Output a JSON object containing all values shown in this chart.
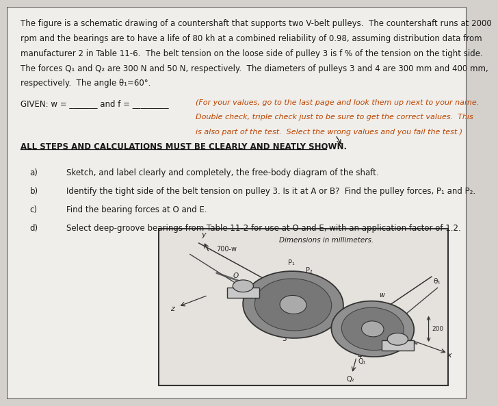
{
  "bg_color": "#d4d0cc",
  "paper_color": "#f0eeea",
  "border_color": "#555555",
  "text_color": "#1a1a1a",
  "title_text_lines": [
    "The figure is a schematic drawing of a countershaft that supports two V-belt pulleys.  The countershaft runs at 2000",
    "rpm and the bearings are to have a life of 80 kh at a combined reliability of 0.98, assuming distribution data from",
    "manufacturer 2 in Table 11-6.  The belt tension on the loose side of pulley 3 is f % of the tension on the tight side.",
    "The forces Q₁ and Q₂ are 300 N and 50 N, respectively.  The diameters of pulleys 3 and 4 are 300 mm and 400 mm,",
    "respectively.  The angle θ₁=60°."
  ],
  "given_text": "GIVEN: w = _______ and f = _________",
  "note_text_lines": [
    "(For your values, go to the last page and look them up next to your name.",
    "Double check, triple check just to be sure to get the correct values.  This",
    "is also part of the test.  Select the wrong values and you fail the test.)"
  ],
  "underline_text": "ALL STEPS AND CALCULATIONS MUST BE CLEARLY AND NEATLY SHOWN.",
  "items": [
    [
      "a)",
      "Sketch, and label clearly and completely, the free-body diagram of the shaft."
    ],
    [
      "b)",
      "Identify the tight side of the belt tension on pulley 3. Is it at A or B?  Find the pulley forces, P₁ and P₂."
    ],
    [
      "c)",
      "Find the bearing forces at O and E."
    ],
    [
      "d)",
      "Select deep-groove bearings from Table 11-2 for use at O and E, with an application factor of 1.2."
    ]
  ],
  "diagram_label": "Dimensions in millimeters.",
  "paper_font_size": 8.5,
  "note_font_size": 8.0,
  "underline_font_size": 8.5,
  "items_font_size": 8.5,
  "note_color": "#bb4400"
}
